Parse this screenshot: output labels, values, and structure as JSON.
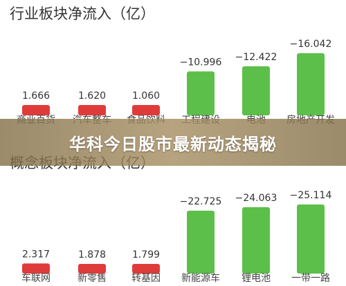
{
  "banner": {
    "text": "华科今日股市最新动态揭秘"
  },
  "colors": {
    "inflow": "#e03b3b",
    "outflow": "#5cbf4a"
  },
  "chart_data": [
    {
      "type": "bar",
      "title": "行业板块净流入（亿）",
      "categories": [
        "商业百货",
        "汽车整车",
        "食品饮料",
        "工程建设",
        "电池",
        "房地产开发"
      ],
      "values": [
        1.666,
        1.62,
        1.06,
        -10.996,
        -12.422,
        -16.042
      ],
      "labels": [
        "1.666",
        "1.620",
        "1.060",
        "−10.996",
        "−12.422",
        "−16.042"
      ]
    },
    {
      "type": "bar",
      "title": "概念板块净流入（亿）",
      "categories": [
        "车联网",
        "新零售",
        "转基因",
        "新能源车",
        "锂电池",
        "一带一路"
      ],
      "values": [
        2.317,
        1.878,
        1.799,
        -22.725,
        -24.063,
        -25.114
      ],
      "labels": [
        "2.317",
        "1.878",
        "1.799",
        "−22.725",
        "−24.063",
        "−25.114"
      ]
    }
  ]
}
